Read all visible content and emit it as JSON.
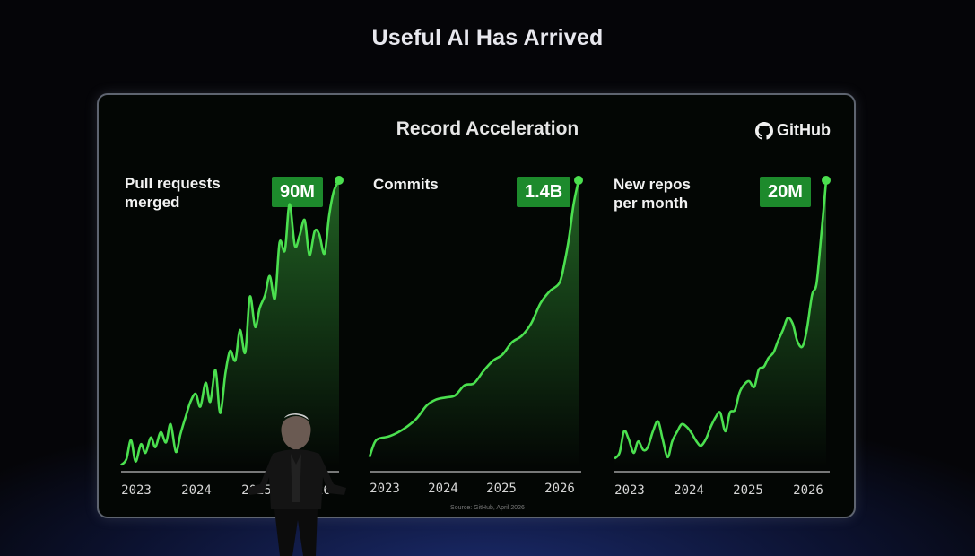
{
  "slide_title": "Useful AI Has Arrived",
  "panel_title": "Record Acceleration",
  "brand": {
    "name": "GitHub",
    "icon": "github-icon"
  },
  "source_note": "Source: GitHub, April 2026",
  "colors": {
    "accent": "#4be04f",
    "badge": "#1d8a2c",
    "background": "#030604"
  },
  "chart_data": [
    {
      "type": "area",
      "label_lines": [
        "Pull requests",
        "merged"
      ],
      "badge": "90M",
      "ticks": [
        "2023",
        "2024",
        "2025",
        "2026"
      ],
      "x": [
        2023.0,
        2023.08,
        2023.15,
        2023.22,
        2023.3,
        2023.37,
        2023.45,
        2023.52,
        2023.6,
        2023.68,
        2023.75,
        2023.83,
        2023.9,
        2023.98,
        2024.05,
        2024.13,
        2024.2,
        2024.28,
        2024.35,
        2024.43,
        2024.5,
        2024.58,
        2024.65,
        2024.73,
        2024.8,
        2024.88,
        2024.95,
        2025.03,
        2025.1,
        2025.18,
        2025.25,
        2025.33,
        2025.4,
        2025.48,
        2025.55,
        2025.63,
        2025.7,
        2025.78,
        2025.85,
        2025.93,
        2026.0,
        2026.08,
        2026.15,
        2026.22,
        2026.3
      ],
      "values": [
        0.7,
        2.5,
        8.5,
        1.8,
        7.2,
        4.5,
        9.3,
        6.3,
        11.0,
        7.8,
        13.5,
        4.8,
        10.5,
        16.0,
        20.5,
        23.0,
        19.0,
        26.5,
        20.5,
        30.5,
        17.0,
        29.5,
        36.5,
        33.5,
        43.0,
        36.0,
        53.5,
        44.0,
        50.0,
        54.0,
        60.0,
        53.0,
        70.5,
        68.0,
        82.5,
        69.5,
        72.5,
        77.5,
        66.5,
        74.0,
        73.0,
        67.0,
        79.0,
        86.5,
        90.0
      ]
    },
    {
      "type": "area",
      "label_lines": [
        "Commits"
      ],
      "badge": "1.4B",
      "ticks": [
        "2023",
        "2024",
        "2025",
        "2026"
      ],
      "x": [
        2023.0,
        2023.08,
        2023.15,
        2023.3,
        2023.45,
        2023.6,
        2023.75,
        2023.9,
        2024.05,
        2024.2,
        2024.35,
        2024.5,
        2024.65,
        2024.8,
        2024.95,
        2025.1,
        2025.25,
        2025.4,
        2025.55,
        2025.7,
        2025.85,
        2026.0,
        2026.08,
        2026.15,
        2026.22,
        2026.3
      ],
      "values": [
        0.05,
        0.12,
        0.14,
        0.15,
        0.17,
        0.2,
        0.24,
        0.3,
        0.33,
        0.34,
        0.35,
        0.4,
        0.41,
        0.47,
        0.52,
        0.55,
        0.61,
        0.64,
        0.7,
        0.8,
        0.86,
        0.9,
        1.0,
        1.12,
        1.28,
        1.4
      ]
    },
    {
      "type": "area",
      "label_lines": [
        "New repos",
        "per month"
      ],
      "badge": "20M",
      "ticks": [
        "2023",
        "2024",
        "2025",
        "2026"
      ],
      "x": [
        2023.0,
        2023.08,
        2023.15,
        2023.22,
        2023.3,
        2023.37,
        2023.45,
        2023.52,
        2023.6,
        2023.68,
        2023.75,
        2023.83,
        2023.9,
        2023.98,
        2024.05,
        2024.13,
        2024.2,
        2024.28,
        2024.35,
        2024.43,
        2024.5,
        2024.58,
        2024.65,
        2024.73,
        2024.8,
        2024.88,
        2024.95,
        2025.03,
        2025.1,
        2025.18,
        2025.25,
        2025.33,
        2025.4,
        2025.48,
        2025.55,
        2025.63,
        2025.7,
        2025.78,
        2025.85,
        2025.93,
        2026.0,
        2026.08,
        2026.15,
        2026.22,
        2026.3
      ],
      "values": [
        0.6,
        1.0,
        2.5,
        2.0,
        1.0,
        1.8,
        1.2,
        1.4,
        2.5,
        3.2,
        2.0,
        0.7,
        1.8,
        2.5,
        3.0,
        2.8,
        2.4,
        1.8,
        1.5,
        2.0,
        2.8,
        3.5,
        3.8,
        2.5,
        3.8,
        4.0,
        5.2,
        5.8,
        6.0,
        5.6,
        6.8,
        7.0,
        7.6,
        8.0,
        8.8,
        9.6,
        10.4,
        10.0,
        8.8,
        8.4,
        9.6,
        12.0,
        12.8,
        16.0,
        20.0
      ]
    }
  ]
}
